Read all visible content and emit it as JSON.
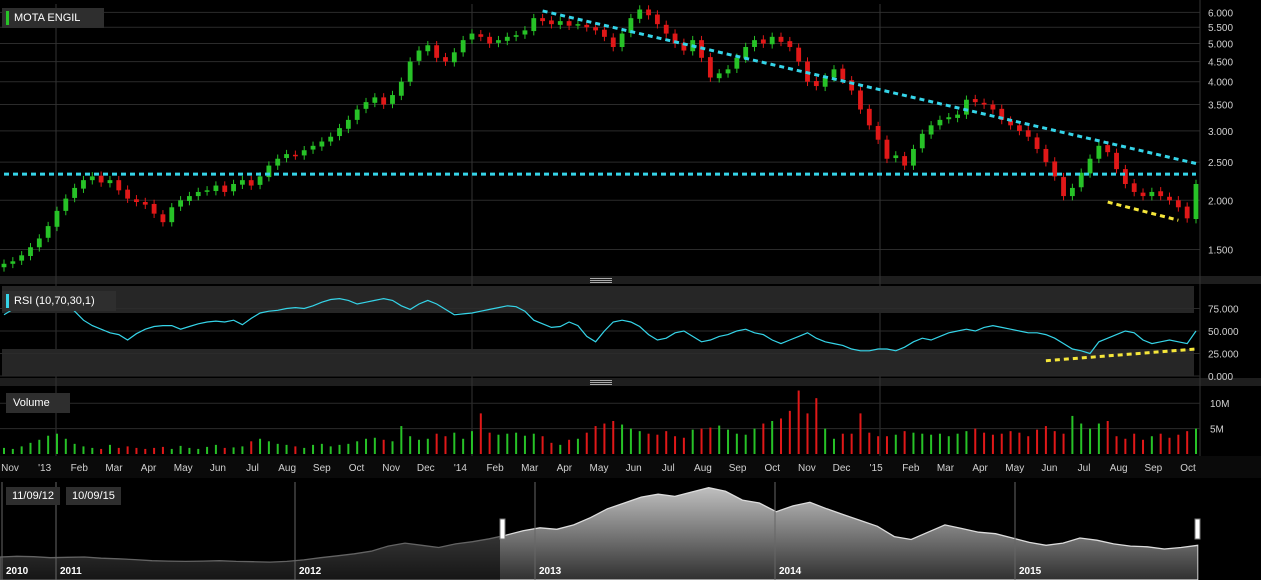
{
  "chart_data": [
    {
      "type": "candlestick",
      "name": "MOTA ENGIL",
      "scale": "log",
      "yticks": [
        "6.000",
        "5.500",
        "5.000",
        "4.500",
        "4.000",
        "3.500",
        "3.000",
        "2.500",
        "2.000",
        "1.500"
      ],
      "ytick_values": [
        6.0,
        5.5,
        5.0,
        4.5,
        4.0,
        3.5,
        3.0,
        2.5,
        2.0,
        1.5
      ],
      "ylim": [
        1.3,
        6.3
      ],
      "start_date": "2012-11-09",
      "end_date": "2015-10-09",
      "close": [
        1.38,
        1.4,
        1.45,
        1.52,
        1.6,
        1.72,
        1.88,
        2.02,
        2.15,
        2.25,
        2.3,
        2.22,
        2.25,
        2.12,
        2.02,
        1.98,
        1.95,
        1.85,
        1.76,
        1.92,
        2.0,
        2.05,
        2.1,
        2.12,
        2.18,
        2.1,
        2.2,
        2.25,
        2.18,
        2.3,
        2.45,
        2.55,
        2.62,
        2.6,
        2.68,
        2.75,
        2.82,
        2.9,
        3.05,
        3.2,
        3.4,
        3.55,
        3.65,
        3.5,
        3.7,
        4.0,
        4.5,
        4.8,
        4.95,
        4.6,
        4.5,
        4.75,
        5.1,
        5.3,
        5.2,
        5.0,
        5.1,
        5.2,
        5.25,
        5.4,
        5.8,
        5.7,
        5.6,
        5.7,
        5.55,
        5.6,
        5.5,
        5.4,
        5.2,
        4.9,
        5.3,
        5.8,
        6.1,
        5.9,
        5.6,
        5.3,
        5.0,
        4.8,
        5.1,
        4.6,
        4.1,
        4.2,
        4.3,
        4.6,
        4.9,
        5.1,
        5.0,
        5.2,
        5.05,
        4.9,
        4.5,
        4.0,
        3.9,
        4.1,
        4.3,
        4.05,
        3.8,
        3.4,
        3.1,
        2.85,
        2.55,
        2.6,
        2.45,
        2.7,
        2.95,
        3.1,
        3.2,
        3.25,
        3.3,
        3.6,
        3.55,
        3.5,
        3.4,
        3.2,
        3.1,
        3.0,
        2.9,
        2.7,
        2.5,
        2.3,
        2.05,
        2.15,
        2.35,
        2.55,
        2.75,
        2.65,
        2.4,
        2.2,
        2.1,
        2.05,
        2.1,
        2.05,
        2.0,
        1.92,
        1.8,
        2.2
      ],
      "trendlines": [
        {
          "kind": "resistance",
          "from_index": 61,
          "from_value": 6.05,
          "to_index": 135,
          "to_value": 2.48,
          "color": "#35d4e8"
        },
        {
          "kind": "support",
          "from_index": 0,
          "from_value": 2.33,
          "to_index": 135,
          "to_value": 2.33,
          "color": "#35d4e8"
        },
        {
          "kind": "support",
          "from_index": 125,
          "from_value": 1.98,
          "to_index": 133,
          "to_value": 1.78,
          "color": "#f5e63a"
        }
      ],
      "xticks": [
        "Nov",
        "'13",
        "Feb",
        "Mar",
        "Apr",
        "May",
        "Jun",
        "Jul",
        "Aug",
        "Sep",
        "Oct",
        "Nov",
        "Dec",
        "'14",
        "Feb",
        "Mar",
        "Apr",
        "May",
        "Jun",
        "Jul",
        "Aug",
        "Sep",
        "Oct",
        "Nov",
        "Dec",
        "'15",
        "Feb",
        "Mar",
        "Apr",
        "May",
        "Jun",
        "Jul",
        "Aug",
        "Sep",
        "Oct"
      ],
      "colors": {
        "up": "#27c227",
        "down": "#e01818",
        "grid": "#2b2b2b",
        "axis_text": "#d0d0d0"
      }
    },
    {
      "type": "line",
      "name": "RSI (10,70,30,1)",
      "yticks": [
        "75.000",
        "50.000",
        "25.000",
        "0.000"
      ],
      "ytick_values": [
        75,
        50,
        25,
        0
      ],
      "ylim": [
        0,
        100
      ],
      "overbought": 70,
      "oversold": 30,
      "values": [
        68,
        74,
        78,
        83,
        86,
        86,
        84,
        80,
        72,
        62,
        56,
        52,
        48,
        46,
        40,
        47,
        52,
        55,
        56,
        56,
        52,
        55,
        58,
        60,
        61,
        60,
        62,
        57,
        64,
        70,
        72,
        73,
        75,
        76,
        75,
        78,
        82,
        85,
        86,
        84,
        80,
        82,
        84,
        86,
        84,
        78,
        74,
        80,
        84,
        80,
        74,
        68,
        69,
        70,
        72,
        74,
        76,
        78,
        77,
        72,
        62,
        58,
        54,
        55,
        60,
        56,
        44,
        38,
        50,
        60,
        62,
        60,
        55,
        46,
        40,
        42,
        48,
        50,
        44,
        38,
        40,
        44,
        46,
        50,
        52,
        48,
        46,
        40,
        36,
        40,
        44,
        48,
        42,
        38,
        36,
        34,
        30,
        28,
        28,
        30,
        30,
        28,
        32,
        38,
        42,
        40,
        44,
        48,
        50,
        52,
        50,
        54,
        56,
        54,
        52,
        50,
        48,
        48,
        46,
        42,
        36,
        30,
        28,
        25,
        38,
        42,
        46,
        50,
        48,
        40,
        36,
        38,
        40,
        38,
        36,
        50
      ],
      "trendline": {
        "from_index": 118,
        "from_value": 17,
        "to_index": 135,
        "to_value": 30,
        "color": "#f5e63a"
      },
      "color": "#35d4e8"
    },
    {
      "type": "bar",
      "name": "Volume",
      "yticks": [
        "10M",
        "5M"
      ],
      "ytick_values": [
        10,
        5
      ],
      "unit": "M",
      "ylim": [
        0,
        13
      ],
      "values": [
        1.2,
        1.0,
        1.5,
        2.2,
        2.8,
        3.6,
        4.0,
        3.0,
        2.0,
        1.5,
        1.2,
        1.0,
        1.8,
        1.2,
        1.5,
        1.2,
        1.0,
        1.2,
        1.4,
        1.0,
        1.6,
        1.2,
        1.0,
        1.4,
        1.8,
        1.2,
        1.3,
        1.5,
        2.5,
        3.0,
        2.5,
        2.0,
        1.8,
        1.5,
        1.2,
        1.8,
        2.0,
        1.5,
        1.8,
        2.0,
        2.5,
        3.0,
        3.2,
        2.8,
        2.5,
        5.5,
        3.5,
        2.8,
        3.0,
        4.0,
        3.5,
        4.2,
        3.0,
        4.5,
        8.0,
        4.2,
        3.8,
        4.0,
        4.2,
        3.6,
        4.0,
        3.5,
        2.2,
        1.8,
        2.8,
        3.0,
        4.2,
        5.5,
        6.0,
        6.5,
        5.8,
        5.0,
        4.5,
        4.0,
        3.8,
        4.5,
        3.5,
        3.2,
        4.8,
        5.0,
        5.2,
        5.6,
        4.8,
        4.0,
        3.8,
        5.0,
        6.0,
        6.5,
        7.0,
        8.5,
        12.5,
        8.0,
        11.0,
        5.0,
        3.0,
        4.0,
        4.0,
        8.0,
        4.2,
        3.5,
        3.5,
        3.8,
        4.5,
        4.2,
        4.0,
        3.8,
        4.0,
        3.5,
        4.0,
        4.5,
        5.0,
        4.2,
        3.8,
        4.0,
        4.5,
        4.2,
        3.5,
        4.8,
        5.5,
        4.5,
        4.0,
        7.5,
        6.0,
        5.0,
        6.0,
        6.5,
        3.5,
        3.0,
        4.0,
        2.8,
        3.5,
        4.0,
        3.2,
        3.8,
        4.5,
        5.0
      ],
      "colors": {
        "up": "#27c227",
        "down": "#e01818"
      }
    },
    {
      "type": "area",
      "name": "navigator",
      "range_start": "11/09/12",
      "range_end": "10/09/15",
      "xticks": [
        "2010",
        "2011",
        "2012",
        "2013",
        "2014",
        "2015"
      ],
      "values": [
        1.3,
        1.35,
        1.32,
        1.25,
        1.28,
        1.3,
        1.22,
        1.18,
        1.12,
        1.05,
        1.02,
        1.0,
        1.02,
        1.05,
        1.0,
        0.98,
        0.95,
        1.0,
        1.1,
        1.25,
        1.38,
        1.52,
        1.7,
        2.05,
        2.25,
        2.1,
        1.95,
        2.2,
        2.35,
        2.55,
        2.8,
        3.1,
        3.3,
        3.2,
        3.5,
        4.0,
        4.6,
        5.0,
        5.4,
        5.6,
        5.45,
        5.75,
        6.05,
        5.8,
        5.2,
        5.0,
        4.4,
        4.8,
        5.05,
        4.6,
        4.2,
        3.8,
        3.4,
        2.7,
        2.5,
        3.0,
        3.5,
        3.25,
        3.0,
        2.9,
        2.6,
        2.3,
        2.1,
        2.25,
        2.6,
        2.45,
        2.2,
        2.05,
        2.0,
        1.85,
        1.95,
        2.1
      ],
      "color": "#dcdcdc"
    }
  ],
  "labels": {
    "symbol": "MOTA ENGIL",
    "rsi": "RSI (10,70,30,1)",
    "volume": "Volume",
    "range_start": "11/09/12",
    "range_end": "10/09/15"
  }
}
